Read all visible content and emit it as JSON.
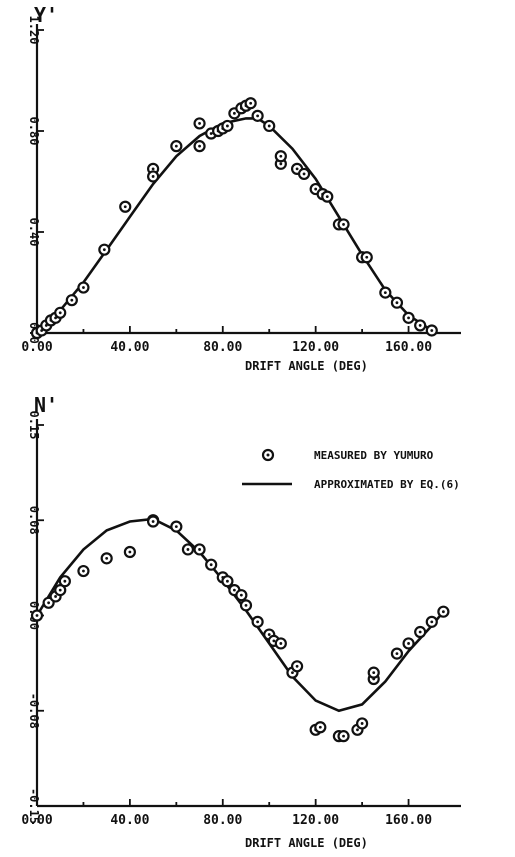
{
  "chart_data": [
    {
      "type": "scatter",
      "ylabel": "Y'",
      "xlabel": "DRIFT ANGLE (DEG)",
      "xlim": [
        0,
        180
      ],
      "ylim": [
        0,
        1.2
      ],
      "x_ticks": [
        "0.00",
        "40.00",
        "80.00",
        "120.00",
        "160.00"
      ],
      "x_tick_values": [
        0,
        40,
        80,
        120,
        160
      ],
      "y_ticks": [
        "0.0",
        "0.40",
        "0.80",
        "1.20"
      ],
      "y_tick_values": [
        0,
        0.4,
        0.8,
        1.2
      ],
      "series": [
        {
          "points": [
            [
              0,
              0
            ],
            [
              2,
              0.01
            ],
            [
              4,
              0.03
            ],
            [
              6,
              0.05
            ],
            [
              8,
              0.06
            ],
            [
              10,
              0.08
            ],
            [
              15,
              0.13
            ],
            [
              20,
              0.18
            ],
            [
              29,
              0.33
            ],
            [
              38,
              0.5
            ],
            [
              50,
              0.65
            ],
            [
              50,
              0.62
            ],
            [
              60,
              0.74
            ],
            [
              70,
              0.83
            ],
            [
              70,
              0.74
            ],
            [
              75,
              0.79
            ],
            [
              78,
              0.8
            ],
            [
              80,
              0.81
            ],
            [
              82,
              0.82
            ],
            [
              85,
              0.87
            ],
            [
              88,
              0.89
            ],
            [
              90,
              0.9
            ],
            [
              92,
              0.91
            ],
            [
              95,
              0.86
            ],
            [
              100,
              0.82
            ],
            [
              105,
              0.67
            ],
            [
              105,
              0.7
            ],
            [
              112,
              0.65
            ],
            [
              115,
              0.63
            ],
            [
              120,
              0.57
            ],
            [
              123,
              0.55
            ],
            [
              125,
              0.54
            ],
            [
              130,
              0.43
            ],
            [
              132,
              0.43
            ],
            [
              140,
              0.3
            ],
            [
              142,
              0.3
            ],
            [
              150,
              0.16
            ],
            [
              155,
              0.12
            ],
            [
              160,
              0.06
            ],
            [
              165,
              0.03
            ],
            [
              170,
              0.01
            ]
          ]
        },
        {
          "curve": [
            [
              0,
              0
            ],
            [
              10,
              0.09
            ],
            [
              20,
              0.2
            ],
            [
              30,
              0.33
            ],
            [
              40,
              0.46
            ],
            [
              50,
              0.59
            ],
            [
              60,
              0.7
            ],
            [
              70,
              0.78
            ],
            [
              80,
              0.83
            ],
            [
              90,
              0.85
            ],
            [
              95,
              0.85
            ],
            [
              100,
              0.82
            ],
            [
              110,
              0.73
            ],
            [
              120,
              0.61
            ],
            [
              130,
              0.46
            ],
            [
              140,
              0.31
            ],
            [
              150,
              0.17
            ],
            [
              160,
              0.07
            ],
            [
              170,
              0.01
            ],
            [
              172,
              0
            ]
          ]
        }
      ]
    },
    {
      "type": "scatter",
      "ylabel": "N'",
      "xlabel": "DRIFT ANGLE (DEG)",
      "xlim": [
        0,
        180
      ],
      "ylim": [
        -0.15,
        0.15
      ],
      "x_ticks": [
        "0.00",
        "40.00",
        "80.00",
        "120.00",
        "160.00"
      ],
      "x_tick_values": [
        0,
        40,
        80,
        120,
        160
      ],
      "y_ticks": [
        "-0.15",
        "-0.08",
        "0.00",
        "0.08",
        "0.15"
      ],
      "y_tick_values": [
        -0.15,
        -0.075,
        0,
        0.075,
        0.15
      ],
      "legend": {
        "placement": "top-right",
        "entries": [
          {
            "marker": "circle",
            "label": "MEASURED BY YUMURO"
          },
          {
            "marker": "line",
            "label": "APPROXIMATED BY EQ.(6)"
          }
        ]
      },
      "series": [
        {
          "points": [
            [
              0,
              0
            ],
            [
              5,
              0.01
            ],
            [
              8,
              0.015
            ],
            [
              10,
              0.02
            ],
            [
              12,
              0.027
            ],
            [
              20,
              0.035
            ],
            [
              30,
              0.045
            ],
            [
              40,
              0.05
            ],
            [
              50,
              0.075
            ],
            [
              50,
              0.074
            ],
            [
              60,
              0.07
            ],
            [
              65,
              0.052
            ],
            [
              70,
              0.052
            ],
            [
              75,
              0.04
            ],
            [
              80,
              0.03
            ],
            [
              82,
              0.027
            ],
            [
              85,
              0.02
            ],
            [
              88,
              0.016
            ],
            [
              90,
              0.008
            ],
            [
              95,
              -0.005
            ],
            [
              100,
              -0.015
            ],
            [
              102,
              -0.02
            ],
            [
              105,
              -0.022
            ],
            [
              110,
              -0.045
            ],
            [
              112,
              -0.04
            ],
            [
              120,
              -0.09
            ],
            [
              122,
              -0.088
            ],
            [
              130,
              -0.095
            ],
            [
              132,
              -0.095
            ],
            [
              138,
              -0.09
            ],
            [
              140,
              -0.085
            ],
            [
              145,
              -0.05
            ],
            [
              145,
              -0.045
            ],
            [
              155,
              -0.03
            ],
            [
              160,
              -0.022
            ],
            [
              165,
              -0.013
            ],
            [
              170,
              -0.005
            ],
            [
              175,
              0.003
            ]
          ]
        },
        {
          "curve": [
            [
              0,
              0
            ],
            [
              10,
              0.03
            ],
            [
              20,
              0.052
            ],
            [
              30,
              0.067
            ],
            [
              40,
              0.074
            ],
            [
              50,
              0.076
            ],
            [
              60,
              0.067
            ],
            [
              70,
              0.05
            ],
            [
              80,
              0.028
            ],
            [
              90,
              0.004
            ],
            [
              100,
              -0.022
            ],
            [
              110,
              -0.048
            ],
            [
              120,
              -0.067
            ],
            [
              130,
              -0.075
            ],
            [
              140,
              -0.07
            ],
            [
              150,
              -0.052
            ],
            [
              160,
              -0.028
            ],
            [
              170,
              -0.008
            ],
            [
              175,
              0.003
            ]
          ]
        }
      ]
    }
  ]
}
